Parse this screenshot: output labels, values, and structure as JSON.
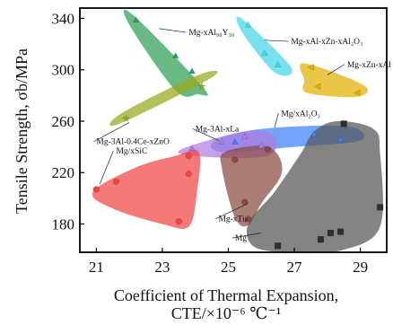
{
  "chart_data": {
    "type": "scatter",
    "xlabel_line1": "Coefficient of Thermal Expansion,",
    "xlabel_line2": "CTE/×10⁻⁶ ℃⁻¹",
    "ylabel": "Tensile Strength, σb/MPa",
    "xlim": [
      20.5,
      29.8
    ],
    "ylim": [
      158,
      348
    ],
    "xticks": [
      21,
      23,
      25,
      27,
      29
    ],
    "yticks": [
      180,
      220,
      260,
      300,
      340
    ],
    "grid": false,
    "series": [
      {
        "name": "Mg-xAl90Y10",
        "color": "#2f9e54",
        "marker": "triangle",
        "points": [
          [
            22.2,
            339
          ],
          [
            23.4,
            311
          ],
          [
            23.9,
            299
          ]
        ],
        "region": [
          [
            22.1,
            343
          ],
          [
            24.25,
            286
          ],
          [
            24.05,
            281
          ],
          [
            23.4,
            284
          ],
          [
            22.0,
            335
          ]
        ]
      },
      {
        "name": "Mg-3Al-0.4Ce-xZnO",
        "color": "#9aa81a",
        "marker": "star",
        "points": [
          [
            21.9,
            262
          ],
          [
            24.2,
            287
          ]
        ],
        "region": [
          [
            21.7,
            258
          ],
          [
            24.5,
            294
          ],
          [
            24.1,
            296
          ],
          [
            21.75,
            266
          ]
        ]
      },
      {
        "name": "Mg-xAl-xZn-xAl2O3",
        "color": "#42d6e6",
        "marker": "triangle",
        "points": [
          [
            25.6,
            335
          ],
          [
            26.1,
            313
          ],
          [
            26.5,
            304
          ]
        ],
        "region": [
          [
            25.4,
            340
          ],
          [
            26.9,
            302
          ],
          [
            26.4,
            298
          ],
          [
            25.4,
            330
          ]
        ]
      },
      {
        "name": "Mg-xZn-xAl",
        "color": "#e0b000",
        "marker": "triangle-left",
        "points": [
          [
            27.5,
            302
          ],
          [
            27.7,
            287
          ],
          [
            28.9,
            282
          ]
        ],
        "region": [
          [
            27.3,
            305
          ],
          [
            29.1,
            288
          ],
          [
            28.9,
            279
          ],
          [
            27.4,
            282
          ],
          [
            27.3,
            292
          ]
        ]
      },
      {
        "name": "Mg/xAl2O3",
        "color": "#3b82f6",
        "marker": "triangle",
        "points": [
          [
            25.2,
            244
          ],
          [
            27.6,
            250
          ],
          [
            28.4,
            246
          ]
        ],
        "region": [
          [
            24.6,
            245
          ],
          [
            26.0,
            254
          ],
          [
            28.6,
            256
          ],
          [
            29.0,
            245
          ],
          [
            27.0,
            240
          ],
          [
            24.8,
            236
          ]
        ]
      },
      {
        "name": "Mg-3Al-xLa",
        "color": "#b07be0",
        "marker": "triangle",
        "points": [
          [
            23.9,
            239
          ],
          [
            24.8,
            244
          ],
          [
            25.5,
            248
          ],
          [
            26.0,
            241
          ]
        ],
        "region": [
          [
            23.5,
            237
          ],
          [
            25.5,
            252
          ],
          [
            26.4,
            248
          ],
          [
            26.2,
            233
          ],
          [
            24.5,
            232
          ]
        ]
      },
      {
        "name": "Mg/xSiC",
        "color": "#f04545",
        "marker": "circle",
        "points": [
          [
            21.0,
            207
          ],
          [
            21.6,
            213
          ],
          [
            23.8,
            233
          ],
          [
            23.8,
            219
          ],
          [
            23.5,
            182
          ]
        ],
        "region": [
          [
            20.9,
            205
          ],
          [
            22.2,
            224
          ],
          [
            23.4,
            233
          ],
          [
            24.1,
            236
          ],
          [
            24.05,
            205
          ],
          [
            23.8,
            178
          ],
          [
            23.0,
            180
          ],
          [
            21.5,
            192
          ]
        ]
      },
      {
        "name": "Mg-xTip",
        "color": "#8b4b43",
        "marker": "circle",
        "points": [
          [
            25.2,
            230
          ],
          [
            26.2,
            238
          ],
          [
            25.5,
            197
          ],
          [
            25.6,
            184
          ]
        ],
        "region": [
          [
            24.9,
            236
          ],
          [
            26.0,
            241
          ],
          [
            26.5,
            234
          ],
          [
            26.6,
            218
          ],
          [
            26.0,
            196
          ],
          [
            25.6,
            179
          ],
          [
            25.2,
            185
          ],
          [
            24.8,
            224
          ]
        ]
      },
      {
        "name": "Mg",
        "color": "#555555",
        "marker": "square",
        "points": [
          [
            26.5,
            163
          ],
          [
            27.8,
            168
          ],
          [
            28.1,
            173
          ],
          [
            28.4,
            174
          ],
          [
            29.6,
            193
          ],
          [
            28.5,
            258
          ]
        ],
        "region": [
          [
            25.6,
            180
          ],
          [
            26.4,
            205
          ],
          [
            27.2,
            235
          ],
          [
            27.6,
            252
          ],
          [
            28.3,
            260
          ],
          [
            29.4,
            254
          ],
          [
            29.6,
            235
          ],
          [
            29.6,
            178
          ],
          [
            28.5,
            160
          ],
          [
            27.0,
            158
          ],
          [
            25.8,
            162
          ]
        ]
      }
    ],
    "annotations": [
      {
        "key": "a1",
        "text": "Mg-xAl₉₀Y₁₀",
        "at": [
          23.8,
          327
        ],
        "target": [
          22.9,
          332
        ]
      },
      {
        "key": "a2",
        "text": "Mg-xAl-xZn-xAl₂O₃",
        "at": [
          26.9,
          320
        ],
        "target": [
          26.1,
          323
        ]
      },
      {
        "key": "a3",
        "text": "Mg-xZn-xAl",
        "at": [
          28.6,
          302
        ],
        "target": [
          28.0,
          296
        ]
      },
      {
        "key": "a4",
        "text": "Mg/xAl₂O₃",
        "at": [
          26.6,
          264
        ],
        "target": [
          26.4,
          255
        ]
      },
      {
        "key": "a5",
        "text": "Mg-3Al-xLa",
        "at": [
          24.0,
          252
        ],
        "target": [
          24.7,
          245
        ]
      },
      {
        "key": "a6",
        "text": "Mg-3Al-0.4Ce-xZnO",
        "at": [
          21.0,
          242
        ],
        "target": [
          22.0,
          259
        ]
      },
      {
        "key": "a7",
        "text": "Mg/xSiC",
        "at": [
          21.6,
          235
        ],
        "target": [
          21.1,
          211
        ]
      },
      {
        "key": "a8",
        "text": "Mg-xTiₚ",
        "at": [
          24.7,
          182
        ],
        "target": [
          25.6,
          196
        ]
      },
      {
        "key": "a9",
        "text": "Mg",
        "at": [
          25.2,
          167
        ],
        "target": [
          26.0,
          173
        ]
      }
    ]
  }
}
